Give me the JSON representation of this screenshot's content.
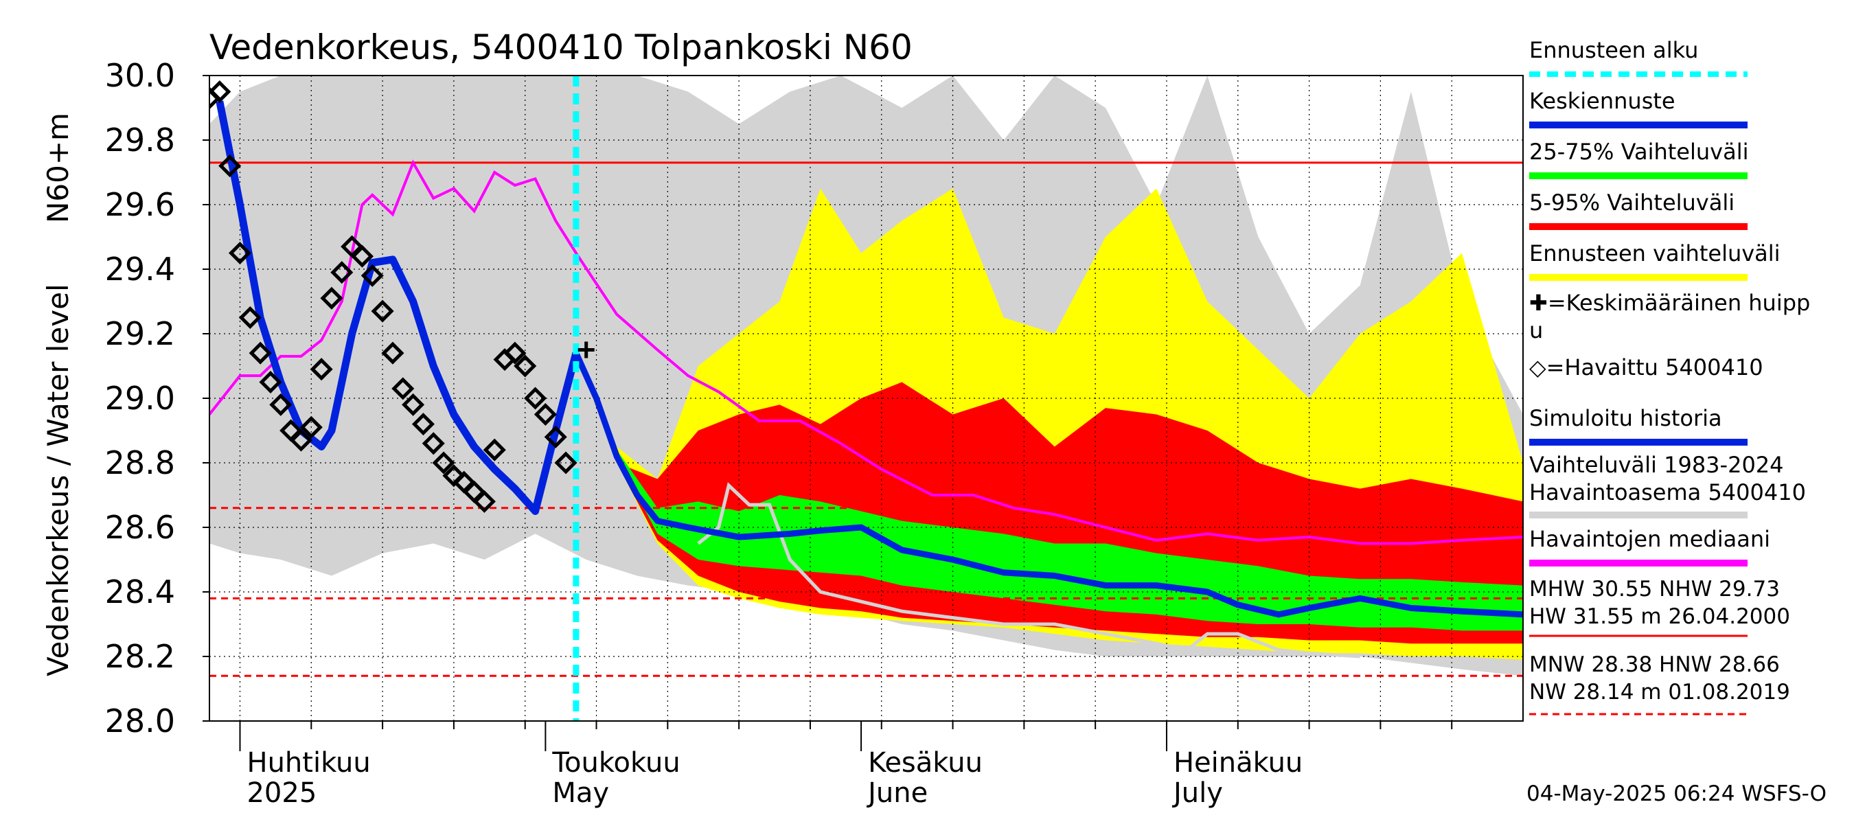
{
  "chart_data": {
    "type": "area",
    "title": "Vedenkorkeus, 5400410 Tolpankoski N60",
    "ylabel_top": "N60+m",
    "ylabel": "Vedenkorkeus / Water level",
    "ylim": [
      28.0,
      30.0
    ],
    "yticks": [
      "28.0",
      "28.2",
      "28.4",
      "28.6",
      "28.8",
      "29.0",
      "29.2",
      "29.4",
      "29.6",
      "29.8",
      "30.0"
    ],
    "xlim": [
      "2025-03-29",
      "2025-08-05"
    ],
    "months": [
      {
        "fi": "Huhtikuu",
        "en": "2025",
        "date": "2025-04-01"
      },
      {
        "fi": "Toukokuu",
        "en": "May",
        "date": "2025-05-01"
      },
      {
        "fi": "Kesäkuu",
        "en": "June",
        "date": "2025-06-01"
      },
      {
        "fi": "Heinäkuu",
        "en": "July",
        "date": "2025-07-01"
      }
    ],
    "forecast_start": "2025-05-04",
    "reference_lines": [
      {
        "name": "NHW",
        "value": 29.73,
        "color": "#ff0000",
        "style": "solid"
      },
      {
        "name": "HNW",
        "value": 28.66,
        "color": "#ff0000",
        "style": "dashed"
      },
      {
        "name": "MNW",
        "value": 28.38,
        "color": "#ff0000",
        "style": "dashed"
      },
      {
        "name": "NW",
        "value": 28.14,
        "color": "#ff0000",
        "style": "dashed"
      }
    ],
    "history_range_1983_2024": {
      "color": "#d3d3d3",
      "x": [
        "2025-03-29",
        "2025-04-01",
        "2025-04-05",
        "2025-04-10",
        "2025-04-15",
        "2025-04-20",
        "2025-04-25",
        "2025-04-30",
        "2025-05-05",
        "2025-05-10",
        "2025-05-15",
        "2025-05-20",
        "2025-05-25",
        "2025-05-30",
        "2025-06-05",
        "2025-06-10",
        "2025-06-15",
        "2025-06-20",
        "2025-06-25",
        "2025-06-30",
        "2025-07-05",
        "2025-07-10",
        "2025-07-15",
        "2025-07-20",
        "2025-07-25",
        "2025-07-30",
        "2025-08-05"
      ],
      "low": [
        28.55,
        28.52,
        28.5,
        28.45,
        28.52,
        28.55,
        28.5,
        28.58,
        28.5,
        28.45,
        28.42,
        28.4,
        28.38,
        28.35,
        28.3,
        28.28,
        28.25,
        28.22,
        28.2,
        28.2,
        28.2,
        28.2,
        28.2,
        28.2,
        28.18,
        28.16,
        28.14
      ],
      "high": [
        29.85,
        29.95,
        30.0,
        30.0,
        30.0,
        30.0,
        30.0,
        30.0,
        30.0,
        30.0,
        29.95,
        29.85,
        29.95,
        30.0,
        29.9,
        30.0,
        29.8,
        30.0,
        29.9,
        29.6,
        30.0,
        29.5,
        29.2,
        29.35,
        29.95,
        29.3,
        28.95
      ]
    },
    "forecast_range": {
      "color": "#ffff00",
      "x": [
        "2025-05-04",
        "2025-05-08",
        "2025-05-12",
        "2025-05-16",
        "2025-05-20",
        "2025-05-24",
        "2025-05-28",
        "2025-06-01",
        "2025-06-05",
        "2025-06-10",
        "2025-06-15",
        "2025-06-20",
        "2025-06-25",
        "2025-06-30",
        "2025-07-05",
        "2025-07-10",
        "2025-07-15",
        "2025-07-20",
        "2025-07-25",
        "2025-07-30",
        "2025-08-05"
      ],
      "low": [
        29.14,
        28.8,
        28.55,
        28.42,
        28.38,
        28.35,
        28.33,
        28.32,
        28.31,
        28.3,
        28.29,
        28.27,
        28.25,
        28.24,
        28.23,
        28.22,
        28.21,
        28.21,
        28.2,
        28.2,
        28.19
      ],
      "high": [
        29.14,
        28.85,
        28.75,
        29.1,
        29.2,
        29.3,
        29.65,
        29.45,
        29.55,
        29.65,
        29.25,
        29.2,
        29.5,
        29.65,
        29.3,
        29.15,
        29.0,
        29.2,
        29.3,
        29.45,
        28.8
      ]
    },
    "percentile_5_95": {
      "color": "#ff0000",
      "x": [
        "2025-05-04",
        "2025-05-08",
        "2025-05-12",
        "2025-05-16",
        "2025-05-20",
        "2025-05-24",
        "2025-05-28",
        "2025-06-01",
        "2025-06-05",
        "2025-06-10",
        "2025-06-15",
        "2025-06-20",
        "2025-06-25",
        "2025-06-30",
        "2025-07-05",
        "2025-07-10",
        "2025-07-15",
        "2025-07-20",
        "2025-07-25",
        "2025-07-30",
        "2025-08-05"
      ],
      "low": [
        29.14,
        28.8,
        28.56,
        28.45,
        28.4,
        28.37,
        28.35,
        28.34,
        28.32,
        28.31,
        28.3,
        28.29,
        28.28,
        28.27,
        28.26,
        28.26,
        28.25,
        28.25,
        28.24,
        28.24,
        28.24
      ],
      "high": [
        29.14,
        28.8,
        28.75,
        28.9,
        28.95,
        28.98,
        28.92,
        29.0,
        29.05,
        28.95,
        29.0,
        28.85,
        28.97,
        28.95,
        28.9,
        28.8,
        28.75,
        28.72,
        28.75,
        28.72,
        28.68
      ]
    },
    "percentile_25_75": {
      "color": "#00ff00",
      "x": [
        "2025-05-04",
        "2025-05-08",
        "2025-05-12",
        "2025-05-16",
        "2025-05-20",
        "2025-05-24",
        "2025-05-28",
        "2025-06-01",
        "2025-06-05",
        "2025-06-10",
        "2025-06-15",
        "2025-06-20",
        "2025-06-25",
        "2025-06-30",
        "2025-07-05",
        "2025-07-10",
        "2025-07-15",
        "2025-07-20",
        "2025-07-25",
        "2025-07-30",
        "2025-08-05"
      ],
      "low": [
        29.14,
        28.82,
        28.58,
        28.5,
        28.48,
        28.47,
        28.46,
        28.45,
        28.42,
        28.4,
        28.38,
        28.36,
        28.34,
        28.33,
        28.31,
        28.3,
        28.3,
        28.29,
        28.29,
        28.28,
        28.28
      ],
      "high": [
        29.14,
        28.84,
        28.66,
        28.68,
        28.65,
        28.7,
        28.68,
        28.65,
        28.62,
        28.6,
        28.58,
        28.55,
        28.55,
        28.52,
        28.5,
        28.48,
        28.45,
        28.44,
        28.44,
        28.43,
        28.42
      ]
    },
    "mean_forecast": {
      "name": "Keskiennuste",
      "color": "#0022dd",
      "x": [
        "2025-05-04",
        "2025-05-06",
        "2025-05-08",
        "2025-05-10",
        "2025-05-12",
        "2025-05-15",
        "2025-05-20",
        "2025-05-25",
        "2025-05-28",
        "2025-06-01",
        "2025-06-05",
        "2025-06-10",
        "2025-06-15",
        "2025-06-20",
        "2025-06-25",
        "2025-06-30",
        "2025-07-05",
        "2025-07-08",
        "2025-07-12",
        "2025-07-15",
        "2025-07-20",
        "2025-07-25",
        "2025-07-30",
        "2025-08-05"
      ],
      "y": [
        29.14,
        29.0,
        28.82,
        28.7,
        28.62,
        28.6,
        28.57,
        28.58,
        28.59,
        28.6,
        28.53,
        28.5,
        28.46,
        28.45,
        28.42,
        28.42,
        28.4,
        28.36,
        28.33,
        28.35,
        28.38,
        28.35,
        28.34,
        28.33
      ]
    },
    "simulated_history": {
      "name": "Simuloitu historia",
      "color": "#0022dd",
      "x": [
        "2025-03-30",
        "2025-04-01",
        "2025-04-03",
        "2025-04-05",
        "2025-04-07",
        "2025-04-09",
        "2025-04-10",
        "2025-04-12",
        "2025-04-14",
        "2025-04-16",
        "2025-04-18",
        "2025-04-20",
        "2025-04-22",
        "2025-04-24",
        "2025-04-26",
        "2025-04-28",
        "2025-04-30",
        "2025-05-02",
        "2025-05-04"
      ],
      "y": [
        29.92,
        29.6,
        29.25,
        29.05,
        28.9,
        28.85,
        28.9,
        29.2,
        29.42,
        29.43,
        29.3,
        29.1,
        28.95,
        28.85,
        28.78,
        28.72,
        28.65,
        28.9,
        29.14
      ]
    },
    "observed": {
      "name": "Havaittu 5400410",
      "color": "#000000",
      "x": [
        "2025-03-29",
        "2025-03-30",
        "2025-03-31",
        "2025-04-01",
        "2025-04-02",
        "2025-04-03",
        "2025-04-04",
        "2025-04-05",
        "2025-04-06",
        "2025-04-07",
        "2025-04-08",
        "2025-04-09",
        "2025-04-10",
        "2025-04-11",
        "2025-04-12",
        "2025-04-13",
        "2025-04-14",
        "2025-04-15",
        "2025-04-16",
        "2025-04-17",
        "2025-04-18",
        "2025-04-19",
        "2025-04-20",
        "2025-04-21",
        "2025-04-22",
        "2025-04-23",
        "2025-04-24",
        "2025-04-25",
        "2025-04-26",
        "2025-04-27",
        "2025-04-28",
        "2025-04-29",
        "2025-04-30",
        "2025-05-01",
        "2025-05-02",
        "2025-05-03"
      ],
      "y": [
        29.93,
        29.95,
        29.72,
        29.45,
        29.25,
        29.14,
        29.05,
        28.98,
        28.9,
        28.87,
        28.91,
        29.09,
        29.31,
        29.39,
        29.47,
        29.44,
        29.38,
        29.27,
        29.14,
        29.03,
        28.98,
        28.92,
        28.86,
        28.8,
        28.76,
        28.74,
        28.71,
        28.68,
        28.84,
        29.12,
        29.14,
        29.1,
        29.0,
        28.95,
        28.88,
        28.8
      ]
    },
    "observations_median": {
      "name": "Havaintojen mediaani",
      "color": "#ff00ff",
      "x": [
        "2025-03-29",
        "2025-04-01",
        "2025-04-03",
        "2025-04-05",
        "2025-04-07",
        "2025-04-09",
        "2025-04-11",
        "2025-04-13",
        "2025-04-14",
        "2025-04-16",
        "2025-04-18",
        "2025-04-20",
        "2025-04-22",
        "2025-04-24",
        "2025-04-26",
        "2025-04-28",
        "2025-04-30",
        "2025-05-02",
        "2025-05-04",
        "2025-05-08",
        "2025-05-12",
        "2025-05-15",
        "2025-05-18",
        "2025-05-22",
        "2025-05-26",
        "2025-05-30",
        "2025-06-03",
        "2025-06-08",
        "2025-06-12",
        "2025-06-16",
        "2025-06-20",
        "2025-06-25",
        "2025-06-30",
        "2025-07-05",
        "2025-07-10",
        "2025-07-15",
        "2025-07-20",
        "2025-07-25",
        "2025-07-30",
        "2025-08-05"
      ],
      "y": [
        28.95,
        29.07,
        29.07,
        29.13,
        29.13,
        29.18,
        29.3,
        29.6,
        29.63,
        29.57,
        29.73,
        29.62,
        29.65,
        29.58,
        29.7,
        29.66,
        29.68,
        29.55,
        29.45,
        29.26,
        29.15,
        29.07,
        29.02,
        28.93,
        28.93,
        28.86,
        28.78,
        28.7,
        28.7,
        28.66,
        28.64,
        28.6,
        28.56,
        28.58,
        28.56,
        28.57,
        28.55,
        28.55,
        28.56,
        28.57
      ]
    },
    "reference_year": {
      "color": "#d3d3d3",
      "x": [
        "2025-05-16",
        "2025-05-18",
        "2025-05-19",
        "2025-05-21",
        "2025-05-23",
        "2025-05-25",
        "2025-05-28",
        "2025-06-01",
        "2025-06-05",
        "2025-06-10",
        "2025-06-15",
        "2025-06-20",
        "2025-06-25",
        "2025-06-30",
        "2025-07-03",
        "2025-07-05",
        "2025-07-08",
        "2025-07-12",
        "2025-07-15",
        "2025-07-20"
      ],
      "y": [
        28.55,
        28.6,
        28.73,
        28.67,
        28.67,
        28.5,
        28.4,
        28.37,
        28.34,
        28.32,
        28.3,
        28.3,
        28.27,
        28.24,
        28.22,
        28.27,
        28.27,
        28.22,
        28.21,
        28.2
      ]
    },
    "mean_peak": {
      "name": "Keskimääräinen huippu",
      "x": "2025-05-05",
      "y": 29.15
    }
  },
  "legend": [
    {
      "label": "Ennusteen alku",
      "color": "#00ffff",
      "style": "dashed"
    },
    {
      "label": "Keskiennuste",
      "color": "#0022dd",
      "style": "line"
    },
    {
      "label": "25-75% Vaihteluväli",
      "color": "#00ff00",
      "style": "line"
    },
    {
      "label": "5-95% Vaihteluväli",
      "color": "#ff0000",
      "style": "line"
    },
    {
      "label": "Ennusteen vaihteluväli",
      "color": "#ffff00",
      "style": "line"
    },
    {
      "label": "✚=Keskimääräinen huipp",
      "label2": "u",
      "style": "none"
    },
    {
      "label": "◇=Havaittu 5400410",
      "style": "none"
    },
    {
      "label": "Simuloitu historia",
      "color": "#0022dd",
      "style": "line"
    },
    {
      "label": "Vaihteluväli 1983-2024",
      "label2": " Havaintoasema 5400410",
      "color": "#d3d3d3",
      "style": "line"
    },
    {
      "label": "Havaintojen mediaani",
      "color": "#ff00ff",
      "style": "line"
    }
  ],
  "stats": {
    "line1": "MHW  30.55 NHW  29.73",
    "line2": "HW  31.55 m 26.04.2000",
    "line3": "MNW  28.38 HNW  28.66",
    "line4": "NW  28.14 m 01.08.2019"
  },
  "footer": "04-May-2025 06:24 WSFS-O"
}
